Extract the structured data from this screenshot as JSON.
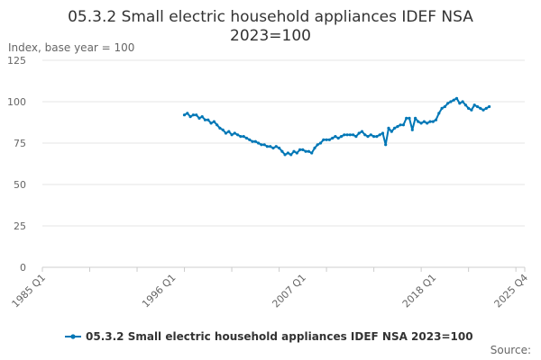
{
  "chart_data": {
    "type": "line",
    "title_line1": "05.3.2 Small electric household appliances IDEF NSA",
    "title_line2": "2023=100",
    "unit_label": "Index, base year = 100",
    "ylim": [
      0,
      125
    ],
    "y_ticks": [
      "0",
      "25",
      "50",
      "75",
      "100",
      "125"
    ],
    "x_range": [
      "1985 Q1",
      "2025 Q4"
    ],
    "x_ticks": [
      "1985 Q1",
      "1996 Q1",
      "2007 Q1",
      "2018 Q1",
      "2025 Q4"
    ],
    "grid": true,
    "legend_position": "bottom",
    "source_label": "Source:",
    "color": "#0077b6",
    "series": [
      {
        "name": "05.3.2 Small electric household appliances IDEF NSA 2023=100",
        "points": [
          [
            "1997 Q1",
            92
          ],
          [
            "1997 Q2",
            93
          ],
          [
            "1997 Q3",
            91
          ],
          [
            "1997 Q4",
            92
          ],
          [
            "1998 Q1",
            92
          ],
          [
            "1998 Q2",
            90
          ],
          [
            "1998 Q3",
            91
          ],
          [
            "1998 Q4",
            89
          ],
          [
            "1999 Q1",
            89
          ],
          [
            "1999 Q2",
            87
          ],
          [
            "1999 Q3",
            88
          ],
          [
            "1999 Q4",
            86
          ],
          [
            "2000 Q1",
            84
          ],
          [
            "2000 Q2",
            83
          ],
          [
            "2000 Q3",
            81
          ],
          [
            "2000 Q4",
            82
          ],
          [
            "2001 Q1",
            80
          ],
          [
            "2001 Q2",
            81
          ],
          [
            "2001 Q3",
            80
          ],
          [
            "2001 Q4",
            79
          ],
          [
            "2002 Q1",
            79
          ],
          [
            "2002 Q2",
            78
          ],
          [
            "2002 Q3",
            77
          ],
          [
            "2002 Q4",
            76
          ],
          [
            "2003 Q1",
            76
          ],
          [
            "2003 Q2",
            75
          ],
          [
            "2003 Q3",
            74
          ],
          [
            "2003 Q4",
            74
          ],
          [
            "2004 Q1",
            73
          ],
          [
            "2004 Q2",
            73
          ],
          [
            "2004 Q3",
            72
          ],
          [
            "2004 Q4",
            73
          ],
          [
            "2005 Q1",
            72
          ],
          [
            "2005 Q2",
            70
          ],
          [
            "2005 Q3",
            68
          ],
          [
            "2005 Q4",
            69
          ],
          [
            "2006 Q1",
            68
          ],
          [
            "2006 Q2",
            70
          ],
          [
            "2006 Q3",
            69
          ],
          [
            "2006 Q4",
            71
          ],
          [
            "2007 Q1",
            71
          ],
          [
            "2007 Q2",
            70
          ],
          [
            "2007 Q3",
            70
          ],
          [
            "2007 Q4",
            69
          ],
          [
            "2008 Q1",
            72
          ],
          [
            "2008 Q2",
            74
          ],
          [
            "2008 Q3",
            75
          ],
          [
            "2008 Q4",
            77
          ],
          [
            "2009 Q1",
            77
          ],
          [
            "2009 Q2",
            77
          ],
          [
            "2009 Q3",
            78
          ],
          [
            "2009 Q4",
            79
          ],
          [
            "2010 Q1",
            78
          ],
          [
            "2010 Q2",
            79
          ],
          [
            "2010 Q3",
            80
          ],
          [
            "2010 Q4",
            80
          ],
          [
            "2011 Q1",
            80
          ],
          [
            "2011 Q2",
            80
          ],
          [
            "2011 Q3",
            79
          ],
          [
            "2011 Q4",
            81
          ],
          [
            "2012 Q1",
            82
          ],
          [
            "2012 Q2",
            80
          ],
          [
            "2012 Q3",
            79
          ],
          [
            "2012 Q4",
            80
          ],
          [
            "2013 Q1",
            79
          ],
          [
            "2013 Q2",
            79
          ],
          [
            "2013 Q3",
            80
          ],
          [
            "2013 Q4",
            81
          ],
          [
            "2014 Q1",
            74
          ],
          [
            "2014 Q2",
            84
          ],
          [
            "2014 Q3",
            82
          ],
          [
            "2014 Q4",
            84
          ],
          [
            "2015 Q1",
            85
          ],
          [
            "2015 Q2",
            86
          ],
          [
            "2015 Q3",
            86
          ],
          [
            "2015 Q4",
            90
          ],
          [
            "2016 Q1",
            90
          ],
          [
            "2016 Q2",
            83
          ],
          [
            "2016 Q3",
            90
          ],
          [
            "2016 Q4",
            88
          ],
          [
            "2017 Q1",
            87
          ],
          [
            "2017 Q2",
            88
          ],
          [
            "2017 Q3",
            87
          ],
          [
            "2017 Q4",
            88
          ],
          [
            "2018 Q1",
            88
          ],
          [
            "2018 Q2",
            89
          ],
          [
            "2018 Q3",
            93
          ],
          [
            "2018 Q4",
            96
          ],
          [
            "2019 Q1",
            97
          ],
          [
            "2019 Q2",
            99
          ],
          [
            "2019 Q3",
            100
          ],
          [
            "2019 Q4",
            101
          ],
          [
            "2020 Q1",
            102
          ],
          [
            "2020 Q2",
            99
          ],
          [
            "2020 Q3",
            100
          ],
          [
            "2020 Q4",
            98
          ],
          [
            "2021 Q1",
            96
          ],
          [
            "2021 Q2",
            95
          ],
          [
            "2021 Q3",
            98
          ],
          [
            "2021 Q4",
            97
          ],
          [
            "2022 Q1",
            96
          ],
          [
            "2022 Q2",
            95
          ],
          [
            "2022 Q3",
            96
          ],
          [
            "2022 Q4",
            97
          ]
        ]
      }
    ]
  }
}
